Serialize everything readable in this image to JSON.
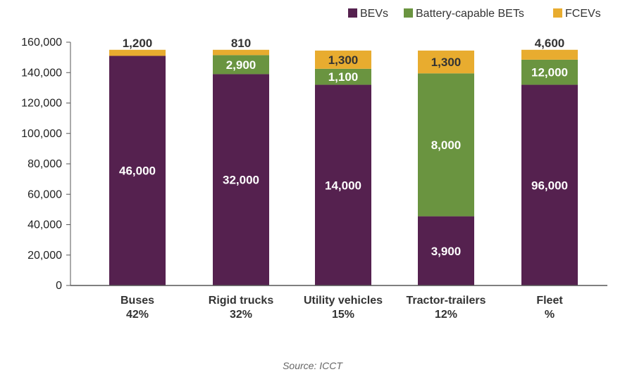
{
  "chart_data": {
    "type": "bar",
    "stacked": true,
    "title": "",
    "xlabel": "",
    "ylabel": "",
    "ylim": [
      0,
      160000
    ],
    "yticks": [
      0,
      20000,
      40000,
      60000,
      80000,
      100000,
      120000,
      140000,
      160000
    ],
    "ytick_labels": [
      "0",
      "20,000",
      "40,000",
      "60,000",
      "80,000",
      "100,000",
      "120,000",
      "140,000",
      "160,000"
    ],
    "legend_position": "top-right",
    "categories": [
      {
        "name": "Buses",
        "share": "42%"
      },
      {
        "name": "Rigid trucks",
        "share": "32%"
      },
      {
        "name": "Utility vehicles",
        "share": "15%"
      },
      {
        "name": "Tractor-trailers",
        "share": "12%"
      },
      {
        "name": "Fleet",
        "share": "%"
      }
    ],
    "series": [
      {
        "name": "BEVs",
        "color": "#55214f",
        "label_color": "#ffffff",
        "values": [
          151000,
          139000,
          132000,
          45500,
          132000
        ],
        "labels": [
          "46,000",
          "32,000",
          "14,000",
          "3,900",
          "96,000"
        ]
      },
      {
        "name": "Battery-capable BETs",
        "color": "#6a9440",
        "label_color": "#ffffff",
        "values": [
          0,
          12500,
          10500,
          94000,
          16500
        ],
        "labels": [
          "",
          "2,900",
          "1,100",
          "8,000",
          "12,000"
        ]
      },
      {
        "name": "FCEVs",
        "color": "#e8ac2f",
        "label_color": "#333333",
        "values": [
          4000,
          3500,
          12000,
          15000,
          6500
        ],
        "labels": [
          "1,200",
          "810",
          "1,300",
          "1,300",
          "4,600"
        ]
      }
    ]
  },
  "source_text": "Source: ICCT"
}
